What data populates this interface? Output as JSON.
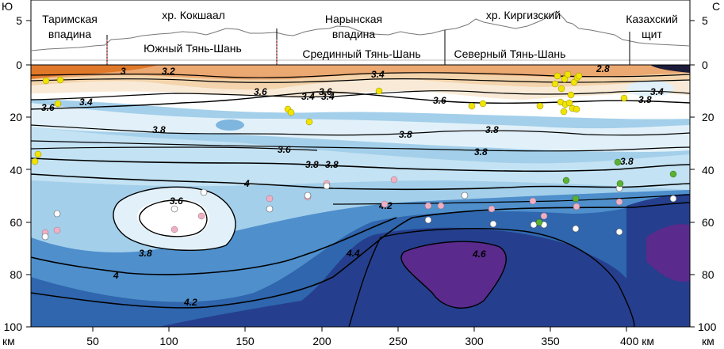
{
  "corner_labels": {
    "left": "Ю",
    "right": "С"
  },
  "regions": {
    "tarim": {
      "line1": "Таримская",
      "line2": "впадина"
    },
    "kokshaal": "хр. Кокшаал",
    "naryn": {
      "line1": "Нарынская",
      "line2": "впадина"
    },
    "kyrgyz_range": "хр. Киргизский",
    "kazakh": {
      "line1": "Казахский",
      "line2": "щит"
    },
    "south_tien_shan": "Южный Тянь-Шань",
    "middle_tien_shan": "Срединный Тянь-Шань",
    "north_tien_shan": "Северный Тянь-Шань"
  },
  "x_axis": {
    "ticks": [
      "50",
      "100",
      "150",
      "200",
      "250",
      "300",
      "350",
      "400 км"
    ],
    "left_unit": "км",
    "right_unit": "км"
  },
  "y_axis": {
    "depth_ticks": [
      "0",
      "20",
      "40",
      "60",
      "80",
      "100"
    ],
    "elevation_ticks": [
      "5",
      "0"
    ]
  },
  "contour_labels": [
    "3",
    "3.2",
    "3.4",
    "3.6",
    "3.6",
    "3.4",
    "3.4",
    "3.6",
    "3.8",
    "3.8",
    "3.8",
    "3.6",
    "3.8",
    "3.8",
    "4",
    "3.6",
    "3.8",
    "4",
    "4.2",
    "4.2",
    "4.4",
    "4.6",
    "2.8",
    "3.4",
    "3.8",
    "3.8",
    "3.4",
    "3.6",
    "3.8"
  ],
  "colors": {
    "orange_dark": "#e0782a",
    "orange": "#eba870",
    "tan": "#f3d4ac",
    "pale": "#f8ead6",
    "white": "#ffffff",
    "light_blue1": "#e2f1f9",
    "light_blue2": "#c3e2f3",
    "light_blue3": "#a3cfea",
    "mid_blue": "#7fb6df",
    "blue": "#4f8fcc",
    "dark_blue": "#2f66ad",
    "navy": "#253f8e",
    "purple": "#5a2a8c",
    "dot_yellow": "#f2e400",
    "dot_pink": "#f0b0c4",
    "dot_white": "#ffffff",
    "dot_green": "#5cb034"
  }
}
